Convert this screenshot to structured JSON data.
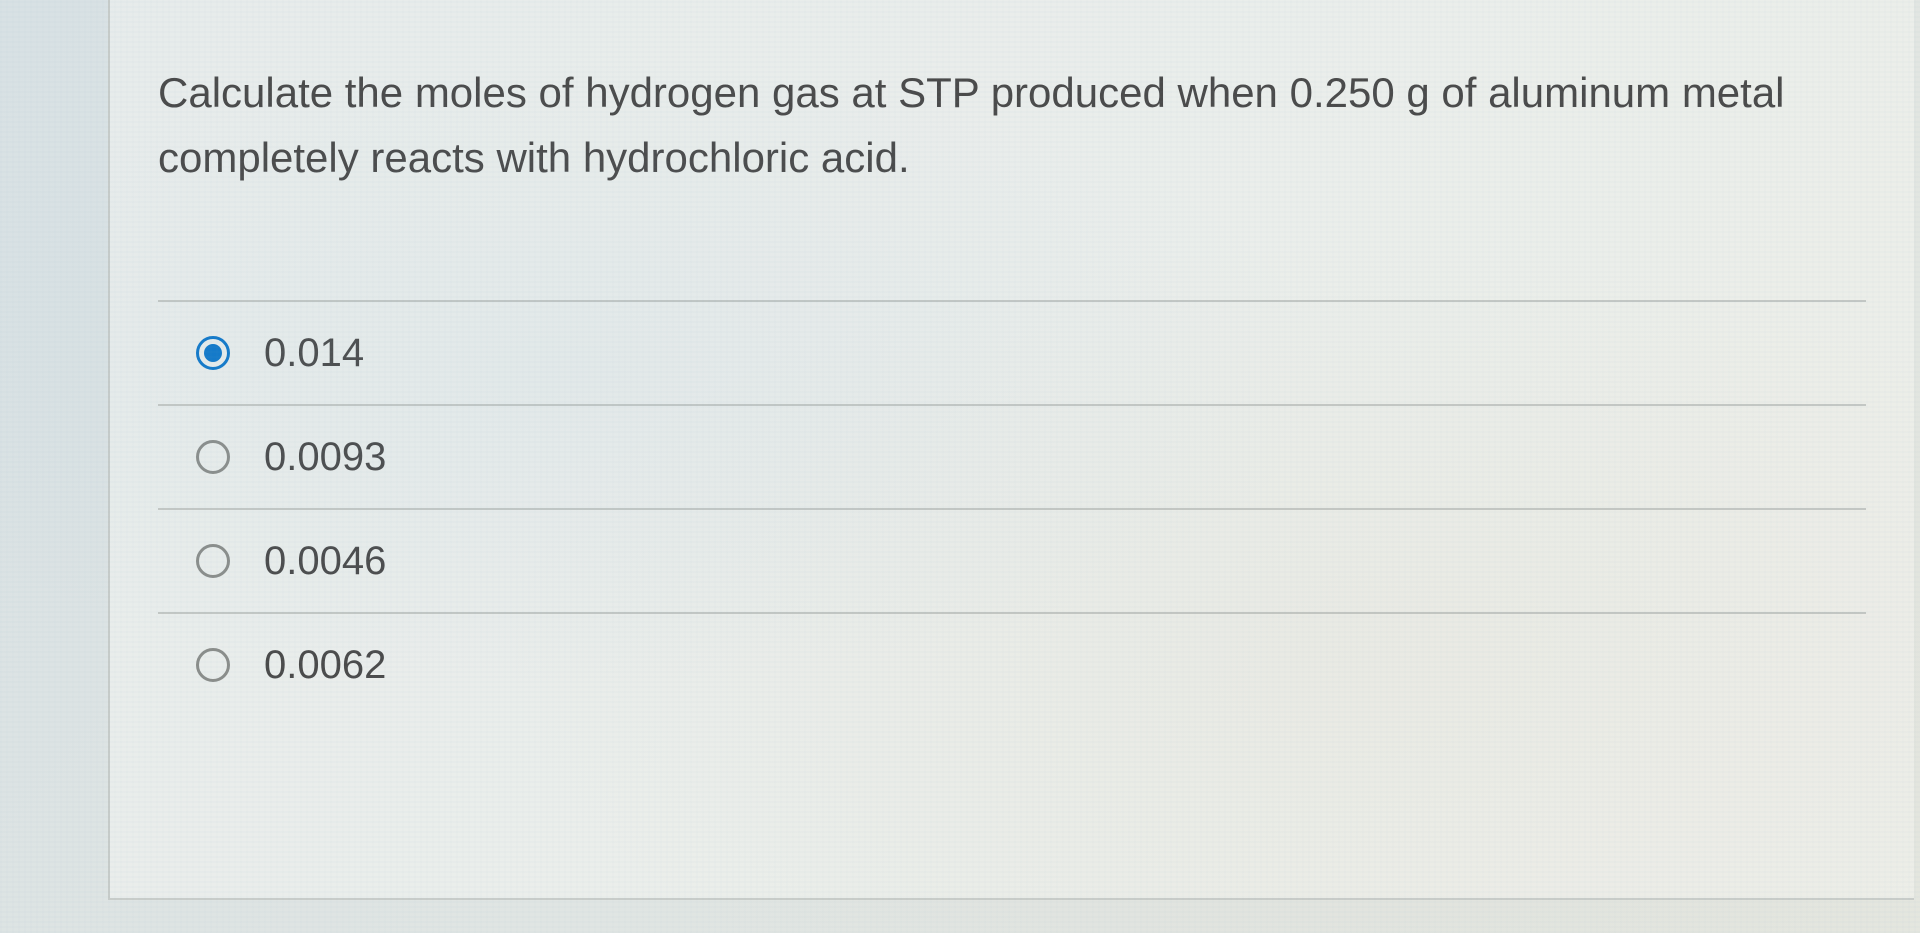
{
  "question": {
    "text": "Calculate the moles of hydrogen gas at STP produced when 0.250 g of aluminum metal completely reacts with hydrochloric acid."
  },
  "options": [
    {
      "label": "0.014",
      "selected": true
    },
    {
      "label": "0.0093",
      "selected": false
    },
    {
      "label": "0.0046",
      "selected": false
    },
    {
      "label": "0.0062",
      "selected": false
    }
  ],
  "colors": {
    "radio_selected": "#1078c9",
    "radio_unselected_border": "#8a8d8a",
    "text": "#4a4a4a",
    "divider": "#c3c7c4",
    "panel_border": "#c8ccc9"
  }
}
